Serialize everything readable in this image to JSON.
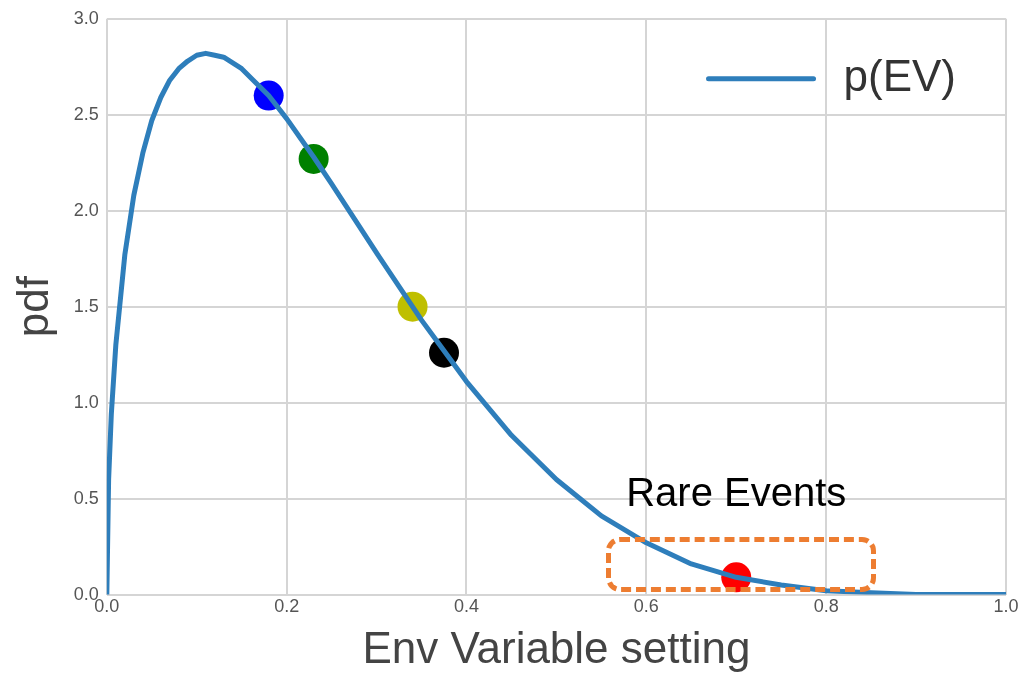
{
  "chart_data": {
    "type": "line",
    "xlabel": "Env Variable setting",
    "ylabel": "pdf",
    "xlim": [
      0,
      1
    ],
    "ylim": [
      0,
      3
    ],
    "xticks": [
      {
        "value": 0,
        "label": "0.0"
      },
      0.2,
      0.4,
      0.6,
      0.8,
      {
        "value": 1,
        "label": "1.0"
      }
    ],
    "yticks": [
      {
        "value": 0,
        "label": "0.0"
      },
      0.5,
      {
        "value": 1,
        "label": "1.0"
      },
      1.5,
      {
        "value": 2,
        "label": "2.0"
      },
      2.5,
      {
        "value": 3,
        "label": "3.0"
      }
    ],
    "grid": true,
    "legend": "top right",
    "marker": "none",
    "line_style": "solid",
    "series": [
      {
        "name": "p(EV)",
        "color": "#2e7ebb",
        "x": [
          0,
          0.002,
          0.005,
          0.01,
          0.02,
          0.03,
          0.04,
          0.05,
          0.06,
          0.07,
          0.08,
          0.09,
          0.1,
          0.11,
          0.12,
          0.13,
          0.15,
          0.18,
          0.2,
          0.23,
          0.25,
          0.3,
          0.34,
          0.35,
          0.375,
          0.4,
          0.45,
          0.5,
          0.55,
          0.6,
          0.65,
          0.7,
          0.75,
          0.8,
          0.85,
          0.9,
          1.0
        ],
        "values": [
          0,
          0.6,
          0.94,
          1.3,
          1.77,
          2.08,
          2.3,
          2.47,
          2.59,
          2.68,
          2.74,
          2.78,
          2.81,
          2.82,
          2.81,
          2.8,
          2.74,
          2.6,
          2.48,
          2.28,
          2.14,
          1.78,
          1.5,
          1.43,
          1.27,
          1.11,
          0.83,
          0.6,
          0.41,
          0.27,
          0.16,
          0.09,
          0.05,
          0.02,
          0.01,
          0,
          0
        ]
      },
      {
        "type": "scatter",
        "marker": "circle",
        "x": [
          0.18,
          0.23,
          0.34,
          0.375,
          0.7
        ],
        "values": [
          2.6,
          2.27,
          1.5,
          1.26,
          0.09
        ],
        "colors": [
          "#0000ff",
          "#008000",
          "#bfbf00",
          "#000000",
          "#ff0000"
        ]
      }
    ],
    "annotations": [
      "Rare Events"
    ]
  }
}
